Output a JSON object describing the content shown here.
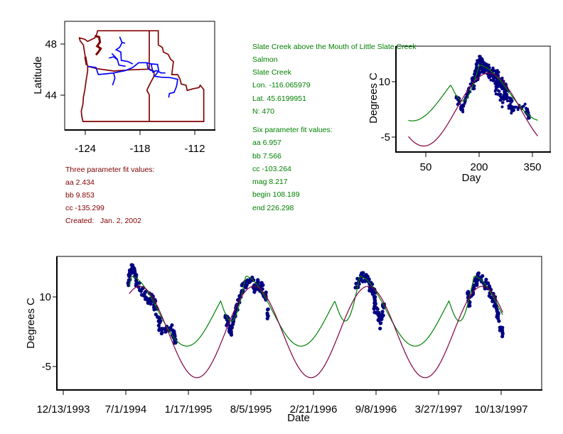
{
  "colors": {
    "green": "#008000",
    "dark_red": "#800000",
    "curve_red": "#800040",
    "points": "#000080",
    "river": "#0000ff",
    "border": "#800000"
  },
  "site_info": {
    "lines": [
      "Slate Creek above the Mouth of Little Slate Creek",
      "Salmon",
      "Slate Creek",
      "Lon. -116.065979",
      "Lat. 45.6199951",
      "N: 470"
    ],
    "six_title": "Six parameter fit values:",
    "six_values": [
      "aa 6.957",
      "bb 7.566",
      "cc -103.264",
      "mag 8.217",
      "begin 108.189",
      "end 226.298"
    ]
  },
  "three_param": {
    "title": "Three parameter fit values:",
    "values": [
      "aa 2.434",
      "bb 9.853",
      "cc -135.299"
    ],
    "created": "Created:   Jan. 2, 2002"
  },
  "fits": {
    "three": {
      "aa": 2.434,
      "bb": 9.853,
      "cc": -135.299
    },
    "six": {
      "aa": 6.957,
      "bb": 7.566,
      "cc": -103.264,
      "mag": 8.217,
      "begin": 108.189,
      "end": 226.298
    }
  },
  "chart_data": [
    {
      "type": "map",
      "ylabel": "Latitude",
      "xticks": [
        "-124",
        "-118",
        "-112"
      ],
      "yticks": [
        "48",
        "44"
      ],
      "xlim": [
        -126.3,
        -110.1
      ],
      "ylim": [
        41.2,
        49.8
      ]
    },
    {
      "type": "scatter",
      "xlabel": "Day",
      "ylabel": "Degrees C",
      "xticks": [
        "50",
        "200",
        "350"
      ],
      "yticks": [
        "10",
        "-5"
      ],
      "xlim": [
        -34,
        400
      ],
      "ylim": [
        -10.7,
        18
      ]
    },
    {
      "type": "scatter",
      "xlabel": "Date",
      "ylabel": "Degrees C",
      "xticks": [
        "12/13/1993",
        "7/1/1994",
        "1/17/1995",
        "8/5/1995",
        "2/21/1996",
        "9/8/1996",
        "3/27/1997",
        "10/13/1997"
      ],
      "yticks": [
        "10",
        "-5"
      ],
      "ylim": [
        -10,
        18.7
      ],
      "n": 470,
      "observations": [
        {
          "year": 1994,
          "points": [
            [
              189,
              13
            ],
            [
              197,
              15.5
            ],
            [
              207,
              16.3
            ],
            [
              215,
              13.5
            ],
            [
              241,
              10.5
            ],
            [
              258,
              9.5
            ],
            [
              273,
              8.9
            ],
            [
              287,
              4.8
            ],
            [
              298,
              2.3
            ],
            [
              332,
              2.8
            ],
            [
              341,
              0.8
            ]
          ]
        },
        {
          "year": 1995,
          "points": [
            [
              135,
              5.6
            ],
            [
              145,
              4.5
            ],
            [
              153,
              2.8
            ],
            [
              165,
              6.5
            ],
            [
              180,
              9.4
            ],
            [
              192,
              12.5
            ],
            [
              215,
              13.8
            ],
            [
              230,
              12
            ],
            [
              240,
              13.1
            ],
            [
              262,
              10.5
            ],
            [
              272,
              5.9
            ]
          ]
        },
        {
          "year": 1996,
          "points": [
            [
              186,
              12
            ],
            [
              204,
              14.6
            ],
            [
              220,
              13.8
            ],
            [
              235,
              12
            ],
            [
              250,
              10.9
            ],
            [
              247,
              7.9
            ],
            [
              261,
              5.9
            ],
            [
              277,
              7.7
            ],
            [
              266,
              4.3
            ]
          ]
        },
        {
          "year": 1997,
          "points": [
            [
              180,
              10.9
            ],
            [
              185,
              8.6
            ],
            [
              200,
              12
            ],
            [
              212,
              14.6
            ],
            [
              237,
              12.8
            ],
            [
              260,
              10
            ],
            [
              271,
              7.9
            ],
            [
              280,
              4.8
            ],
            [
              292,
              2.0
            ]
          ]
        }
      ]
    }
  ]
}
